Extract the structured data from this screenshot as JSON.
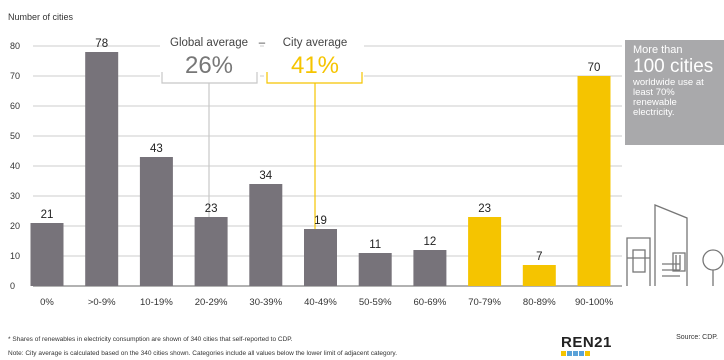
{
  "chart_data": {
    "type": "bar",
    "ylabel": "Number of cities",
    "yticks": [
      0,
      10,
      20,
      30,
      40,
      50,
      60,
      70,
      80
    ],
    "ylim": [
      0,
      85
    ],
    "grid": true,
    "categories": [
      "0%",
      ">0-9%",
      "10-19%",
      "20-29%",
      "30-39%",
      "40-49%",
      "50-59%",
      "60-69%",
      "70-79%",
      "80-89%",
      "90-100%"
    ],
    "values": [
      21,
      78,
      43,
      23,
      34,
      19,
      11,
      12,
      23,
      7,
      70
    ],
    "value_labels": [
      "21",
      "78",
      "43",
      "23",
      "34",
      "19",
      "11",
      "12",
      "23",
      "7",
      "70"
    ],
    "colors": [
      "#77737a",
      "#77737a",
      "#77737a",
      "#77737a",
      "#77737a",
      "#77737a",
      "#77737a",
      "#77737a",
      "#f5c400",
      "#f5c400",
      "#f5c400"
    ],
    "global_average": {
      "label": "Global average",
      "value": "26%",
      "color": "#c8c8c8"
    },
    "city_average": {
      "label": "City average",
      "value": "41%",
      "color": "#f5c400"
    }
  },
  "callout": {
    "line1": "More than",
    "line2": "100 cities",
    "line3": "worldwide use at least 70% renewable electricity."
  },
  "notes": {
    "shares": "* Shares of renewables in electricity consumption are shown of 340 cities that self-reported to CDP.",
    "note": "Note: City average is calculated based on the 340 cities shown. Categories include all values below the lower limit of adjacent category."
  },
  "logo": "REN21",
  "source": "Source: CDP.",
  "colors": {
    "grey_bar": "#77737a",
    "yellow_bar": "#f5c400",
    "callout_bg": "#a9a9ab"
  }
}
